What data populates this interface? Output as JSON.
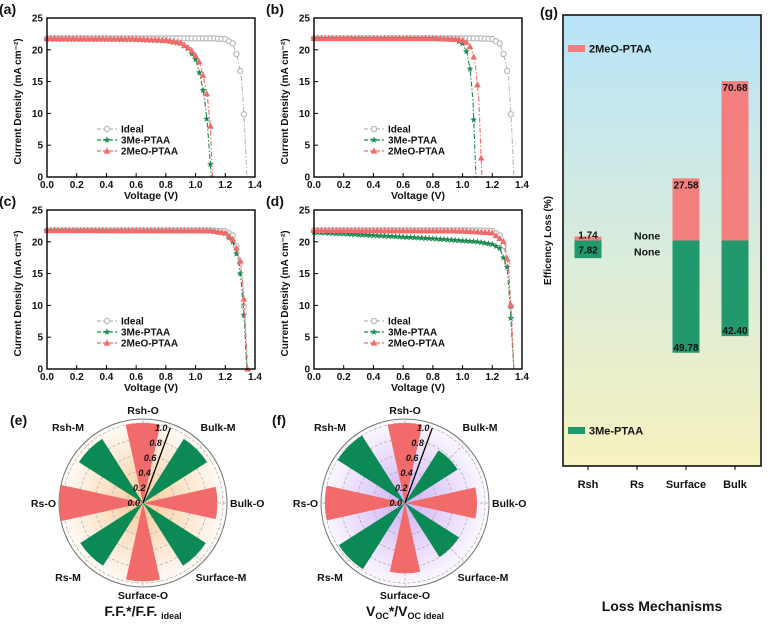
{
  "chart_data": [
    {
      "panel": "(a)",
      "type": "line",
      "xlabel": "Voltage (V)",
      "ylabel": "Current Density (mA cm⁻²)",
      "xlim": [
        0,
        1.4
      ],
      "ylim": [
        0,
        25
      ],
      "xticks": [
        "0.0",
        "0.2",
        "0.4",
        "0.6",
        "0.8",
        "1.0",
        "1.2",
        "1.4"
      ],
      "yticks": [
        "0",
        "5",
        "10",
        "15",
        "20",
        "25"
      ],
      "legend": "center-left",
      "series": [
        {
          "name": "Ideal",
          "color": "#b8b8b8",
          "marker": "circle",
          "points": [
            [
              0,
              21.8
            ],
            [
              0.4,
              21.8
            ],
            [
              0.8,
              21.8
            ],
            [
              1.1,
              21.8
            ],
            [
              1.2,
              21.7
            ],
            [
              1.25,
              21
            ],
            [
              1.28,
              19
            ],
            [
              1.31,
              15.5
            ],
            [
              1.33,
              8
            ],
            [
              1.345,
              0
            ]
          ]
        },
        {
          "name": "3Me-PTAA",
          "color": "#1a8a50",
          "marker": "star",
          "points": [
            [
              0,
              21.7
            ],
            [
              0.6,
              21.6
            ],
            [
              0.8,
              21.4
            ],
            [
              0.9,
              21
            ],
            [
              0.95,
              20.2
            ],
            [
              1.0,
              18.5
            ],
            [
              1.03,
              16
            ],
            [
              1.06,
              12.5
            ],
            [
              1.08,
              8
            ],
            [
              1.1,
              2
            ],
            [
              1.105,
              0
            ]
          ]
        },
        {
          "name": "2MeO-PTAA",
          "color": "#f26b6b",
          "marker": "triangle",
          "points": [
            [
              0,
              21.8
            ],
            [
              0.6,
              21.7
            ],
            [
              0.8,
              21.5
            ],
            [
              0.9,
              21.1
            ],
            [
              0.97,
              20
            ],
            [
              1.02,
              18.5
            ],
            [
              1.05,
              16
            ],
            [
              1.08,
              12.5
            ],
            [
              1.1,
              8
            ],
            [
              1.11,
              2
            ],
            [
              1.115,
              0
            ]
          ]
        }
      ]
    },
    {
      "panel": "(b)",
      "type": "line",
      "xlabel": "Voltage (V)",
      "ylabel": "Current Density (mA cm⁻²)",
      "xlim": [
        0,
        1.4
      ],
      "ylim": [
        0,
        25
      ],
      "xticks": [
        "0.0",
        "0.2",
        "0.4",
        "0.6",
        "0.8",
        "1.0",
        "1.2",
        "1.4"
      ],
      "yticks": [
        "0",
        "5",
        "10",
        "15",
        "20",
        "25"
      ],
      "legend": "center-left",
      "series": [
        {
          "name": "Ideal",
          "color": "#b8b8b8",
          "marker": "circle",
          "points": [
            [
              0,
              21.8
            ],
            [
              0.4,
              21.8
            ],
            [
              0.8,
              21.8
            ],
            [
              1.1,
              21.8
            ],
            [
              1.2,
              21.7
            ],
            [
              1.25,
              21
            ],
            [
              1.28,
              19
            ],
            [
              1.31,
              15.5
            ],
            [
              1.33,
              8
            ],
            [
              1.345,
              0
            ]
          ]
        },
        {
          "name": "3Me-PTAA",
          "color": "#1a8a50",
          "marker": "star",
          "points": [
            [
              0,
              21.8
            ],
            [
              0.8,
              21.8
            ],
            [
              0.95,
              21.6
            ],
            [
              1.0,
              21
            ],
            [
              1.03,
              19.5
            ],
            [
              1.05,
              17
            ],
            [
              1.07,
              12
            ],
            [
              1.08,
              6
            ],
            [
              1.09,
              0
            ]
          ]
        },
        {
          "name": "2MeO-PTAA",
          "color": "#f26b6b",
          "marker": "triangle",
          "points": [
            [
              0,
              21.8
            ],
            [
              0.8,
              21.8
            ],
            [
              0.99,
              21.6
            ],
            [
              1.04,
              21
            ],
            [
              1.07,
              19.5
            ],
            [
              1.09,
              17
            ],
            [
              1.11,
              12
            ],
            [
              1.12,
              6
            ],
            [
              1.13,
              0
            ]
          ]
        }
      ]
    },
    {
      "panel": "(c)",
      "type": "line",
      "xlabel": "Voltage (V)",
      "ylabel": "Current Density (mA cm⁻²)",
      "xlim": [
        0,
        1.4
      ],
      "ylim": [
        0,
        25
      ],
      "xticks": [
        "0.0",
        "0.2",
        "0.4",
        "0.6",
        "0.8",
        "1.0",
        "1.2",
        "1.4"
      ],
      "yticks": [
        "0",
        "5",
        "10",
        "15",
        "20",
        "25"
      ],
      "legend": "center-left",
      "series": [
        {
          "name": "Ideal",
          "color": "#b8b8b8",
          "marker": "circle",
          "points": [
            [
              0,
              21.8
            ],
            [
              0.4,
              21.8
            ],
            [
              0.8,
              21.8
            ],
            [
              1.1,
              21.8
            ],
            [
              1.2,
              21.7
            ],
            [
              1.25,
              21
            ],
            [
              1.28,
              19
            ],
            [
              1.31,
              15.5
            ],
            [
              1.33,
              8
            ],
            [
              1.345,
              0
            ]
          ]
        },
        {
          "name": "3Me-PTAA",
          "color": "#1a8a50",
          "marker": "star",
          "points": [
            [
              0,
              21.8
            ],
            [
              1.1,
              21.7
            ],
            [
              1.2,
              21.3
            ],
            [
              1.25,
              20
            ],
            [
              1.29,
              17
            ],
            [
              1.31,
              13
            ],
            [
              1.33,
              7
            ],
            [
              1.345,
              0
            ]
          ]
        },
        {
          "name": "2MeO-PTAA",
          "color": "#f26b6b",
          "marker": "triangle",
          "points": [
            [
              0,
              21.8
            ],
            [
              1.1,
              21.75
            ],
            [
              1.2,
              21.4
            ],
            [
              1.26,
              20.2
            ],
            [
              1.3,
              17
            ],
            [
              1.32,
              13
            ],
            [
              1.335,
              7
            ],
            [
              1.35,
              0
            ]
          ]
        }
      ]
    },
    {
      "panel": "(d)",
      "type": "line",
      "xlabel": "Voltage (V)",
      "ylabel": "Current Density (mA cm⁻²)",
      "xlim": [
        0,
        1.4
      ],
      "ylim": [
        0,
        25
      ],
      "xticks": [
        "0.0",
        "0.2",
        "0.4",
        "0.6",
        "0.8",
        "1.0",
        "1.2",
        "1.4"
      ],
      "yticks": [
        "0",
        "5",
        "10",
        "15",
        "20",
        "25"
      ],
      "legend": "center-left",
      "series": [
        {
          "name": "Ideal",
          "color": "#b8b8b8",
          "marker": "circle",
          "points": [
            [
              0,
              21.8
            ],
            [
              0.4,
              21.8
            ],
            [
              0.8,
              21.8
            ],
            [
              1.1,
              21.8
            ],
            [
              1.2,
              21.7
            ],
            [
              1.25,
              21
            ],
            [
              1.28,
              19
            ],
            [
              1.31,
              15.5
            ],
            [
              1.33,
              8
            ],
            [
              1.345,
              0
            ]
          ]
        },
        {
          "name": "3Me-PTAA",
          "color": "#1a8a50",
          "marker": "star",
          "points": [
            [
              0,
              21.5
            ],
            [
              0.4,
              21.0
            ],
            [
              0.8,
              20.5
            ],
            [
              1.1,
              20
            ],
            [
              1.2,
              19.6
            ],
            [
              1.25,
              19
            ],
            [
              1.3,
              16
            ],
            [
              1.32,
              10
            ],
            [
              1.335,
              4
            ],
            [
              1.345,
              0
            ]
          ]
        },
        {
          "name": "2MeO-PTAA",
          "color": "#f26b6b",
          "marker": "triangle",
          "points": [
            [
              0,
              21.8
            ],
            [
              1.0,
              21.7
            ],
            [
              1.2,
              21.4
            ],
            [
              1.28,
              20
            ],
            [
              1.31,
              16
            ],
            [
              1.33,
              8
            ],
            [
              1.345,
              0
            ]
          ]
        }
      ]
    },
    {
      "panel": "(e)",
      "type": "polar-bar",
      "title": "F.F.*/F.F.",
      "title_sub": "ideal",
      "rlim": [
        0,
        1.05
      ],
      "rticks": [
        "0.0",
        "0.2",
        "0.4",
        "0.6",
        "0.8",
        "1.0"
      ],
      "glow_color": "#f7c48f",
      "categories": [
        "Rsh-O",
        "Bulk-M",
        "Bulk-O",
        "Surface-M",
        "Surface-O",
        "Rs-M",
        "Rs-O",
        "Rsh-M"
      ],
      "values": [
        1.0,
        0.95,
        0.93,
        0.93,
        0.98,
        0.93,
        1.05,
        0.95
      ],
      "colors": [
        "#f26b6b",
        "#0c8a55",
        "#f26b6b",
        "#0c8a55",
        "#f26b6b",
        "#0c8a55",
        "#f26b6b",
        "#0c8a55"
      ]
    },
    {
      "panel": "(f)",
      "type": "polar-bar",
      "title": "V",
      "title_sub1": "OC",
      "title_mid": "*/V",
      "title_sub": "OC ideal",
      "rlim": [
        0,
        1.05
      ],
      "rticks": [
        "0.0",
        "0.2",
        "0.4",
        "0.6",
        "0.8",
        "1.0"
      ],
      "glow_color": "#c9a6f5",
      "categories": [
        "Rsh-O",
        "Bulk-M",
        "Bulk-O",
        "Surface-M",
        "Surface-O",
        "Rs-M",
        "Rs-O",
        "Rsh-M"
      ],
      "values": [
        1.0,
        0.78,
        0.9,
        0.8,
        0.88,
        0.98,
        1.0,
        1.0
      ],
      "colors": [
        "#f26b6b",
        "#0c8a55",
        "#f26b6b",
        "#0c8a55",
        "#f26b6b",
        "#0c8a55",
        "#f26b6b",
        "#0c8a55"
      ]
    },
    {
      "panel": "(g)",
      "type": "bar",
      "xlabel": "Loss Mechanisms",
      "ylabel": "Efficency Loss (%)",
      "ylim": [
        -100,
        100
      ],
      "categories": [
        "Rsh",
        "Rs",
        "Surface",
        "Bulk"
      ],
      "background_top": "#b8e4f9",
      "background_bottom": "#f7f2c0",
      "series": [
        {
          "name": "2MeO-PTAA",
          "color": "#f47f7f",
          "direction": "up",
          "values": [
            1.74,
            null,
            27.58,
            70.68
          ],
          "labels": [
            "1.74",
            "None",
            "27.58",
            "70.68"
          ]
        },
        {
          "name": "3Me-PTAA",
          "color": "#22996c",
          "direction": "down",
          "values": [
            7.82,
            null,
            49.78,
            42.4
          ],
          "labels": [
            "7.82",
            "None",
            "49.78",
            "42.40"
          ]
        }
      ]
    }
  ]
}
